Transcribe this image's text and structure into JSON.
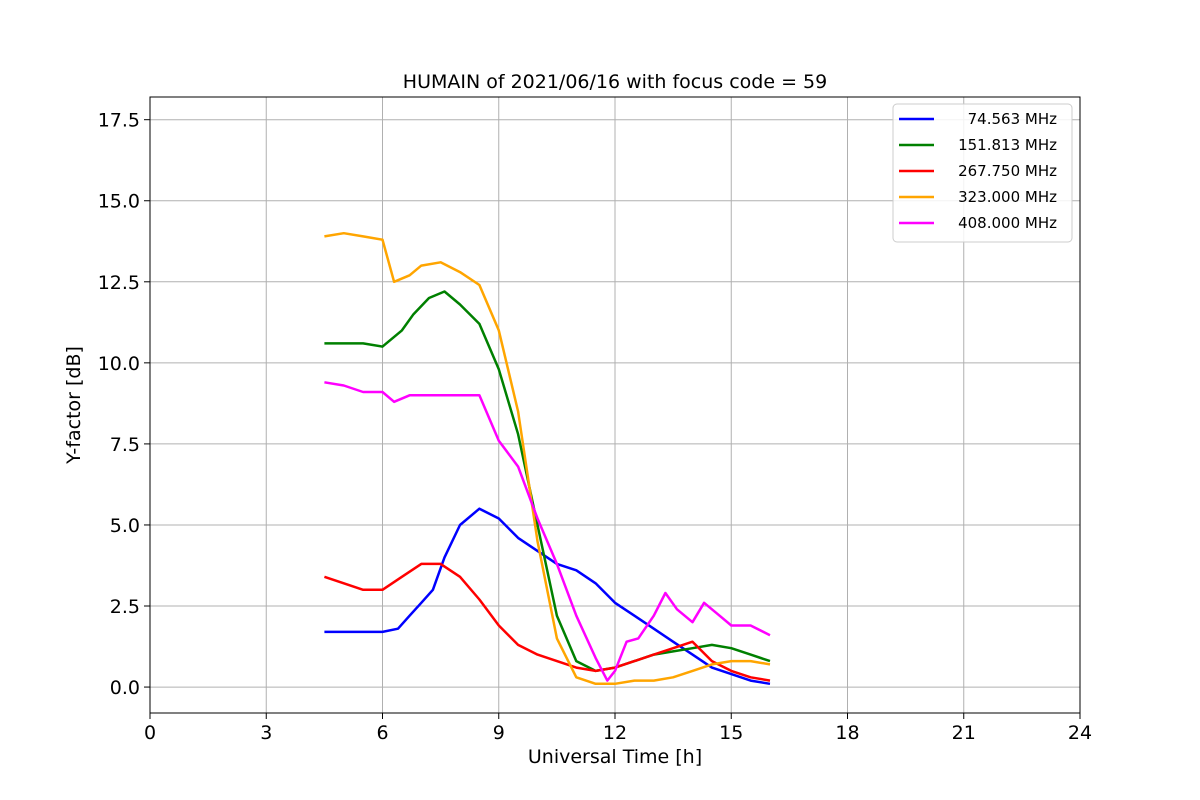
{
  "chart_data": {
    "type": "line",
    "title": "HUMAIN of 2021/06/16 with focus code = 59",
    "xlabel": "Universal Time [h]",
    "ylabel": "Y-factor [dB]",
    "xlim": [
      0,
      24
    ],
    "ylim": [
      -0.8,
      18.2
    ],
    "xticks": [
      0,
      3,
      6,
      9,
      12,
      15,
      18,
      21,
      24
    ],
    "xtick_labels": [
      "0",
      "3",
      "6",
      "9",
      "12",
      "15",
      "18",
      "21",
      "24"
    ],
    "yticks": [
      0,
      2.5,
      5,
      7.5,
      10,
      12.5,
      15,
      17.5
    ],
    "ytick_labels": [
      "0.0",
      "2.5",
      "5.0",
      "7.5",
      "10.0",
      "12.5",
      "15.0",
      "17.5"
    ],
    "grid": true,
    "legend_position": "top-right",
    "series": [
      {
        "name": "74.563 MHz",
        "color": "#0000ff",
        "points": [
          [
            4.5,
            1.7
          ],
          [
            5.0,
            1.7
          ],
          [
            5.5,
            1.7
          ],
          [
            6.0,
            1.7
          ],
          [
            6.4,
            1.8
          ],
          [
            6.7,
            2.2
          ],
          [
            7.0,
            2.6
          ],
          [
            7.3,
            3.0
          ],
          [
            7.6,
            4.0
          ],
          [
            8.0,
            5.0
          ],
          [
            8.5,
            5.5
          ],
          [
            9.0,
            5.2
          ],
          [
            9.5,
            4.6
          ],
          [
            10.0,
            4.2
          ],
          [
            10.5,
            3.8
          ],
          [
            11.0,
            3.6
          ],
          [
            11.5,
            3.2
          ],
          [
            12.0,
            2.6
          ],
          [
            12.5,
            2.2
          ],
          [
            13.0,
            1.8
          ],
          [
            13.5,
            1.4
          ],
          [
            14.0,
            1.0
          ],
          [
            14.5,
            0.6
          ],
          [
            15.0,
            0.4
          ],
          [
            15.5,
            0.2
          ],
          [
            16.0,
            0.1
          ]
        ]
      },
      {
        "name": "151.813 MHz",
        "color": "#008000",
        "points": [
          [
            4.5,
            10.6
          ],
          [
            5.0,
            10.6
          ],
          [
            5.5,
            10.6
          ],
          [
            6.0,
            10.5
          ],
          [
            6.5,
            11.0
          ],
          [
            6.8,
            11.5
          ],
          [
            7.2,
            12.0
          ],
          [
            7.6,
            12.2
          ],
          [
            8.0,
            11.8
          ],
          [
            8.5,
            11.2
          ],
          [
            9.0,
            9.8
          ],
          [
            9.5,
            7.8
          ],
          [
            10.0,
            5.0
          ],
          [
            10.5,
            2.2
          ],
          [
            11.0,
            0.8
          ],
          [
            11.5,
            0.5
          ],
          [
            12.0,
            0.6
          ],
          [
            12.5,
            0.8
          ],
          [
            13.0,
            1.0
          ],
          [
            13.5,
            1.1
          ],
          [
            14.0,
            1.2
          ],
          [
            14.5,
            1.3
          ],
          [
            15.0,
            1.2
          ],
          [
            15.5,
            1.0
          ],
          [
            16.0,
            0.8
          ]
        ]
      },
      {
        "name": "267.750 MHz",
        "color": "#ff0000",
        "points": [
          [
            4.5,
            3.4
          ],
          [
            5.0,
            3.2
          ],
          [
            5.5,
            3.0
          ],
          [
            6.0,
            3.0
          ],
          [
            6.5,
            3.4
          ],
          [
            7.0,
            3.8
          ],
          [
            7.5,
            3.8
          ],
          [
            8.0,
            3.4
          ],
          [
            8.5,
            2.7
          ],
          [
            9.0,
            1.9
          ],
          [
            9.5,
            1.3
          ],
          [
            10.0,
            1.0
          ],
          [
            10.5,
            0.8
          ],
          [
            11.0,
            0.6
          ],
          [
            11.5,
            0.5
          ],
          [
            12.0,
            0.6
          ],
          [
            12.5,
            0.8
          ],
          [
            13.0,
            1.0
          ],
          [
            13.5,
            1.2
          ],
          [
            14.0,
            1.4
          ],
          [
            14.5,
            0.8
          ],
          [
            15.0,
            0.5
          ],
          [
            15.5,
            0.3
          ],
          [
            16.0,
            0.2
          ]
        ]
      },
      {
        "name": "323.000 MHz",
        "color": "#ffa500",
        "points": [
          [
            4.5,
            13.9
          ],
          [
            5.0,
            14.0
          ],
          [
            5.5,
            13.9
          ],
          [
            6.0,
            13.8
          ],
          [
            6.3,
            12.5
          ],
          [
            6.7,
            12.7
          ],
          [
            7.0,
            13.0
          ],
          [
            7.5,
            13.1
          ],
          [
            8.0,
            12.8
          ],
          [
            8.5,
            12.4
          ],
          [
            9.0,
            11.0
          ],
          [
            9.5,
            8.5
          ],
          [
            10.0,
            4.5
          ],
          [
            10.5,
            1.5
          ],
          [
            11.0,
            0.3
          ],
          [
            11.5,
            0.1
          ],
          [
            12.0,
            0.1
          ],
          [
            12.5,
            0.2
          ],
          [
            13.0,
            0.2
          ],
          [
            13.5,
            0.3
          ],
          [
            14.0,
            0.5
          ],
          [
            14.5,
            0.7
          ],
          [
            15.0,
            0.8
          ],
          [
            15.5,
            0.8
          ],
          [
            16.0,
            0.7
          ]
        ]
      },
      {
        "name": "408.000 MHz",
        "color": "#ff00ff",
        "points": [
          [
            4.5,
            9.4
          ],
          [
            5.0,
            9.3
          ],
          [
            5.5,
            9.1
          ],
          [
            6.0,
            9.1
          ],
          [
            6.3,
            8.8
          ],
          [
            6.7,
            9.0
          ],
          [
            7.0,
            9.0
          ],
          [
            7.5,
            9.0
          ],
          [
            8.0,
            9.0
          ],
          [
            8.5,
            9.0
          ],
          [
            9.0,
            7.6
          ],
          [
            9.5,
            6.8
          ],
          [
            10.0,
            5.2
          ],
          [
            10.5,
            3.8
          ],
          [
            11.0,
            2.2
          ],
          [
            11.5,
            0.9
          ],
          [
            11.8,
            0.2
          ],
          [
            12.0,
            0.5
          ],
          [
            12.3,
            1.4
          ],
          [
            12.6,
            1.5
          ],
          [
            13.0,
            2.2
          ],
          [
            13.3,
            2.9
          ],
          [
            13.6,
            2.4
          ],
          [
            14.0,
            2.0
          ],
          [
            14.3,
            2.6
          ],
          [
            14.7,
            2.2
          ],
          [
            15.0,
            1.9
          ],
          [
            15.5,
            1.9
          ],
          [
            16.0,
            1.6
          ]
        ]
      }
    ]
  }
}
